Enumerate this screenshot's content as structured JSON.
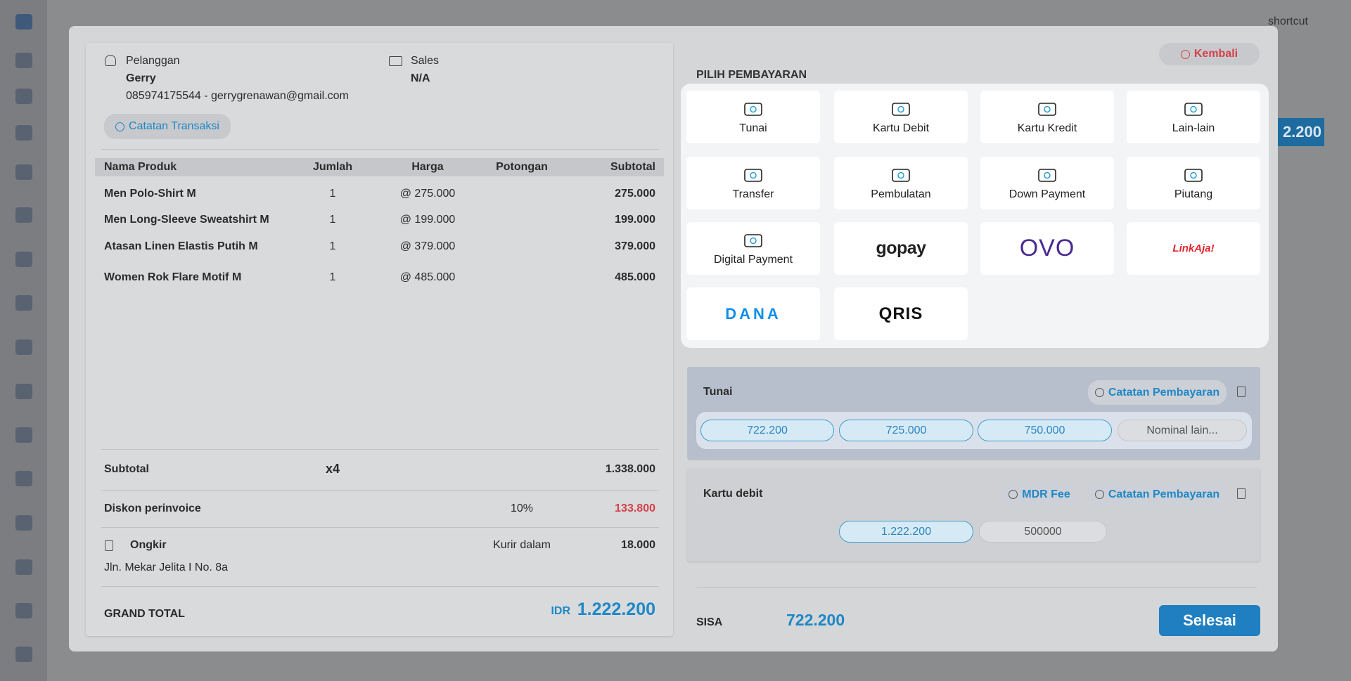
{
  "header": {
    "shortcut": "shortcut",
    "behind_total": "2.200"
  },
  "customer": {
    "label": "Pelanggan",
    "name": "Gerry",
    "contact": "085974175544 - gerrygrenawan@gmail.com"
  },
  "sales": {
    "label": "Sales",
    "name": "N/A"
  },
  "transaction_note_button": "Catatan Transaksi",
  "table": {
    "columns": [
      "Nama Produk",
      "Jumlah",
      "Harga",
      "Potongan",
      "Subtotal"
    ],
    "rows": [
      {
        "product": "Men Polo-Shirt M",
        "qty": "1",
        "price": "@ 275.000",
        "subtotal": "275.000"
      },
      {
        "product": "Men Long-Sleeve Sweatshirt M",
        "qty": "1",
        "price": "@ 199.000",
        "subtotal": "199.000"
      },
      {
        "product": "Atasan Linen Elastis Putih M",
        "qty": "1",
        "price": "@ 379.000",
        "subtotal": "379.000"
      },
      {
        "product": "Women Rok Flare Motif M",
        "qty": "1",
        "price": "@ 485.000",
        "subtotal": "485.000"
      }
    ]
  },
  "summary": {
    "subtotal_label": "Subtotal",
    "item_count": "x4",
    "subtotal": "1.338.000",
    "discount_label": "Diskon perinvoice",
    "discount_rate": "10%",
    "discount": "133.800",
    "shipping_label": "Ongkir",
    "courier": "Kurir dalam",
    "shipping": "18.000",
    "address": "Jln. Mekar Jelita I No. 8a",
    "grand_total_label": "GRAND TOTAL",
    "currency": "IDR",
    "grand_total": "1.222.200"
  },
  "payment": {
    "title": "PILIH PEMBAYARAN",
    "back_button": "Kembali",
    "methods": [
      {
        "label": "Tunai"
      },
      {
        "label": "Kartu Debit"
      },
      {
        "label": "Kartu Kredit"
      },
      {
        "label": "Lain-lain"
      },
      {
        "label": "Transfer"
      },
      {
        "label": "Pembulatan"
      },
      {
        "label": "Down Payment"
      },
      {
        "label": "Piutang"
      },
      {
        "label": "Digital Payment"
      },
      {
        "logo": "gopay"
      },
      {
        "logo": "OVO"
      },
      {
        "logo": "LinkAja!"
      },
      {
        "logo": "DANA"
      },
      {
        "logo": "QRIS"
      }
    ],
    "selected": [
      {
        "name": "Tunai",
        "note_button": "Catatan Pembayaran",
        "options": [
          "722.200",
          "725.000",
          "750.000",
          "Nominal lain..."
        ]
      },
      {
        "name": "Kartu debit",
        "fee_button": "MDR Fee",
        "note_button": "Catatan Pembayaran",
        "amounts": [
          "1.222.200",
          "500000"
        ]
      }
    ],
    "remaining_label": "SISA",
    "remaining": "722.200",
    "finish_button": "Selesai"
  }
}
